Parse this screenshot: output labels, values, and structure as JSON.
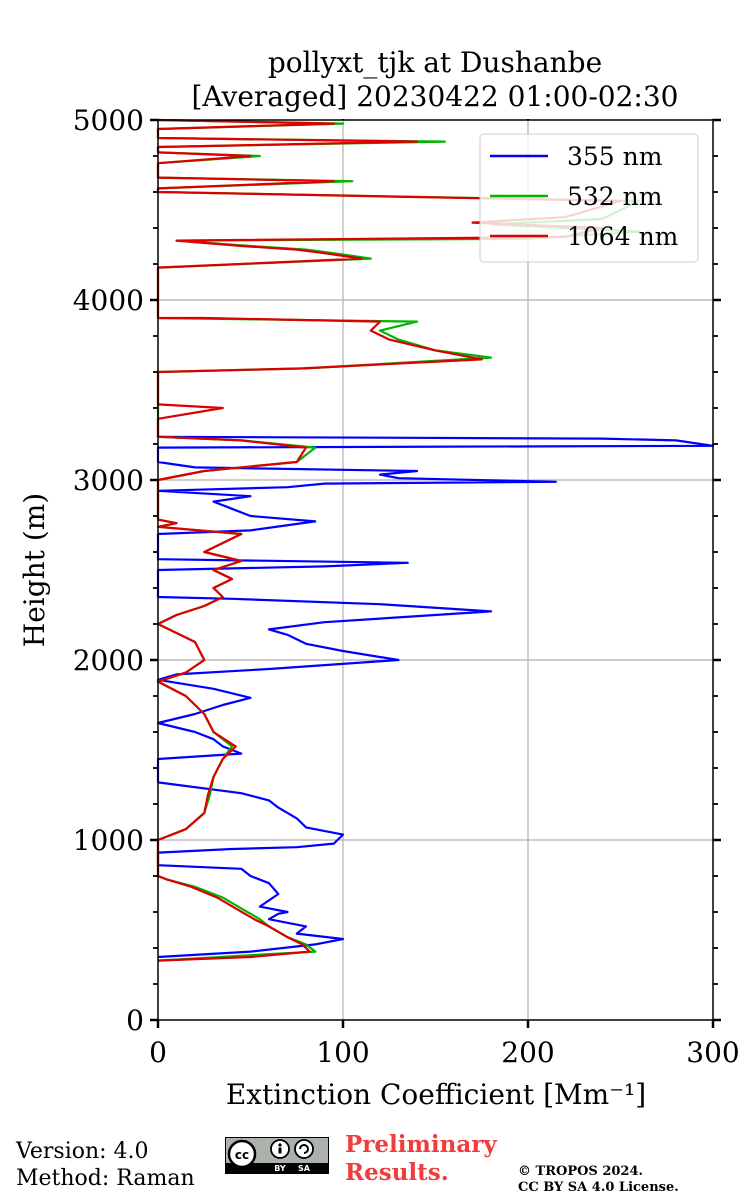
{
  "chart_data": {
    "type": "line",
    "title": "pollyxt_tjk at Dushanbe",
    "subtitle": "[Averaged] 20230422 01:00-02:30",
    "xlabel": "Extinction Coefficient [Mm⁻¹]",
    "ylabel": "Height (m)",
    "xlim": [
      0,
      300
    ],
    "ylim": [
      0,
      5000
    ],
    "xticks": [
      0,
      100,
      200,
      300
    ],
    "yticks": [
      0,
      1000,
      2000,
      3000,
      4000,
      5000
    ],
    "grid": true,
    "legend_position": "top-right",
    "series": [
      {
        "name": "355 nm",
        "color": "#0000ff",
        "points": [
          [
            0,
            350
          ],
          [
            50,
            380
          ],
          [
            85,
            420
          ],
          [
            100,
            450
          ],
          [
            75,
            480
          ],
          [
            80,
            520
          ],
          [
            60,
            560
          ],
          [
            65,
            590
          ],
          [
            70,
            600
          ],
          [
            55,
            630
          ],
          [
            65,
            700
          ],
          [
            60,
            760
          ],
          [
            50,
            800
          ],
          [
            45,
            840
          ],
          [
            0,
            860
          ],
          [
            0,
            930
          ],
          [
            40,
            950
          ],
          [
            75,
            960
          ],
          [
            95,
            980
          ],
          [
            100,
            1030
          ],
          [
            80,
            1070
          ],
          [
            75,
            1120
          ],
          [
            65,
            1180
          ],
          [
            60,
            1220
          ],
          [
            45,
            1260
          ],
          [
            0,
            1320
          ],
          [
            0,
            1450
          ],
          [
            45,
            1480
          ],
          [
            35,
            1520
          ],
          [
            30,
            1560
          ],
          [
            20,
            1600
          ],
          [
            0,
            1650
          ],
          [
            20,
            1700
          ],
          [
            35,
            1750
          ],
          [
            50,
            1790
          ],
          [
            30,
            1840
          ],
          [
            0,
            1890
          ],
          [
            10,
            1920
          ],
          [
            60,
            1950
          ],
          [
            130,
            2000
          ],
          [
            100,
            2050
          ],
          [
            80,
            2090
          ],
          [
            70,
            2140
          ],
          [
            60,
            2170
          ],
          [
            90,
            2210
          ],
          [
            180,
            2270
          ],
          [
            120,
            2310
          ],
          [
            40,
            2340
          ],
          [
            0,
            2350
          ],
          [
            0,
            2500
          ],
          [
            90,
            2520
          ],
          [
            135,
            2540
          ],
          [
            0,
            2560
          ],
          [
            0,
            2590
          ],
          [
            0,
            2700
          ],
          [
            50,
            2720
          ],
          [
            85,
            2770
          ],
          [
            50,
            2800
          ],
          [
            40,
            2840
          ],
          [
            30,
            2880
          ],
          [
            50,
            2910
          ],
          [
            0,
            2940
          ],
          [
            70,
            2960
          ],
          [
            90,
            2980
          ],
          [
            215,
            2990
          ],
          [
            130,
            3010
          ],
          [
            120,
            3030
          ],
          [
            140,
            3050
          ],
          [
            20,
            3070
          ],
          [
            0,
            3100
          ],
          [
            0,
            3180
          ],
          [
            300,
            3190
          ],
          [
            280,
            3220
          ],
          [
            240,
            3230
          ],
          [
            0,
            3240
          ]
        ]
      },
      {
        "name": "532 nm",
        "color": "#00b400",
        "points": [
          [
            0,
            330
          ],
          [
            50,
            360
          ],
          [
            85,
            380
          ],
          [
            80,
            420
          ],
          [
            70,
            460
          ],
          [
            60,
            520
          ],
          [
            55,
            560
          ],
          [
            45,
            620
          ],
          [
            35,
            680
          ],
          [
            20,
            740
          ],
          [
            5,
            780
          ],
          [
            0,
            800
          ],
          [
            0,
            1000
          ],
          [
            5,
            1020
          ],
          [
            15,
            1060
          ],
          [
            25,
            1150
          ],
          [
            28,
            1250
          ],
          [
            30,
            1350
          ],
          [
            35,
            1450
          ],
          [
            40,
            1520
          ],
          [
            30,
            1600
          ],
          [
            25,
            1700
          ],
          [
            15,
            1800
          ],
          [
            0,
            1880
          ],
          [
            15,
            1930
          ],
          [
            25,
            2000
          ],
          [
            20,
            2100
          ],
          [
            0,
            2200
          ],
          [
            10,
            2250
          ],
          [
            25,
            2300
          ],
          [
            35,
            2350
          ],
          [
            30,
            2400
          ],
          [
            40,
            2450
          ],
          [
            30,
            2500
          ],
          [
            45,
            2550
          ],
          [
            25,
            2600
          ],
          [
            35,
            2650
          ],
          [
            45,
            2700
          ],
          [
            0,
            2740
          ],
          [
            10,
            2760
          ],
          [
            0,
            2780
          ],
          [
            0,
            3000
          ],
          [
            25,
            3050
          ],
          [
            75,
            3100
          ],
          [
            85,
            3180
          ],
          [
            45,
            3220
          ],
          [
            0,
            3240
          ],
          [
            0,
            3600
          ],
          [
            80,
            3620
          ],
          [
            180,
            3680
          ],
          [
            150,
            3720
          ],
          [
            130,
            3780
          ],
          [
            120,
            3830
          ],
          [
            140,
            3880
          ],
          [
            0,
            3900
          ],
          [
            0,
            4180
          ],
          [
            115,
            4230
          ],
          [
            95,
            4260
          ],
          [
            80,
            4280
          ],
          [
            50,
            4300
          ],
          [
            10,
            4330
          ],
          [
            200,
            4340
          ],
          [
            260,
            4380
          ],
          [
            180,
            4420
          ],
          [
            240,
            4450
          ],
          [
            260,
            4550
          ],
          [
            0,
            4600
          ],
          [
            0,
            4620
          ],
          [
            105,
            4660
          ],
          [
            0,
            4680
          ],
          [
            0,
            4760
          ],
          [
            55,
            4800
          ],
          [
            0,
            4820
          ],
          [
            0,
            4850
          ],
          [
            155,
            4880
          ],
          [
            0,
            4900
          ],
          [
            0,
            4950
          ],
          [
            100,
            4980
          ],
          [
            0,
            5000
          ]
        ]
      },
      {
        "name": "1064 nm",
        "color": "#dc0000",
        "points": [
          [
            0,
            330
          ],
          [
            50,
            350
          ],
          [
            82,
            380
          ],
          [
            78,
            420
          ],
          [
            70,
            460
          ],
          [
            60,
            520
          ],
          [
            52,
            560
          ],
          [
            42,
            620
          ],
          [
            32,
            680
          ],
          [
            18,
            740
          ],
          [
            5,
            780
          ],
          [
            0,
            800
          ],
          [
            0,
            1000
          ],
          [
            5,
            1020
          ],
          [
            15,
            1060
          ],
          [
            25,
            1150
          ],
          [
            27,
            1250
          ],
          [
            30,
            1350
          ],
          [
            35,
            1450
          ],
          [
            42,
            1520
          ],
          [
            30,
            1600
          ],
          [
            25,
            1700
          ],
          [
            15,
            1800
          ],
          [
            0,
            1880
          ],
          [
            15,
            1930
          ],
          [
            25,
            2000
          ],
          [
            20,
            2100
          ],
          [
            0,
            2200
          ],
          [
            10,
            2250
          ],
          [
            25,
            2300
          ],
          [
            35,
            2350
          ],
          [
            30,
            2400
          ],
          [
            40,
            2450
          ],
          [
            30,
            2500
          ],
          [
            45,
            2550
          ],
          [
            25,
            2600
          ],
          [
            35,
            2650
          ],
          [
            45,
            2700
          ],
          [
            0,
            2740
          ],
          [
            10,
            2760
          ],
          [
            0,
            2780
          ],
          [
            0,
            3000
          ],
          [
            25,
            3050
          ],
          [
            75,
            3100
          ],
          [
            80,
            3180
          ],
          [
            45,
            3220
          ],
          [
            0,
            3240
          ],
          [
            0,
            3340
          ],
          [
            35,
            3400
          ],
          [
            0,
            3420
          ],
          [
            0,
            3480
          ],
          [
            0,
            3600
          ],
          [
            78,
            3620
          ],
          [
            175,
            3670
          ],
          [
            150,
            3720
          ],
          [
            125,
            3780
          ],
          [
            115,
            3830
          ],
          [
            120,
            3880
          ],
          [
            25,
            3900
          ],
          [
            0,
            3900
          ],
          [
            0,
            4180
          ],
          [
            110,
            4230
          ],
          [
            90,
            4260
          ],
          [
            75,
            4280
          ],
          [
            45,
            4300
          ],
          [
            10,
            4330
          ],
          [
            220,
            4350
          ],
          [
            240,
            4400
          ],
          [
            170,
            4430
          ],
          [
            220,
            4460
          ],
          [
            250,
            4550
          ],
          [
            0,
            4600
          ],
          [
            0,
            4620
          ],
          [
            95,
            4660
          ],
          [
            0,
            4680
          ],
          [
            0,
            4760
          ],
          [
            50,
            4800
          ],
          [
            0,
            4820
          ],
          [
            0,
            4850
          ],
          [
            140,
            4880
          ],
          [
            0,
            4900
          ],
          [
            0,
            4950
          ],
          [
            95,
            4980
          ],
          [
            0,
            5000
          ]
        ]
      }
    ]
  },
  "footer": {
    "version_line": "Version: 4.0",
    "method_line": "Method: Raman",
    "prelim_line1": "Preliminary",
    "prelim_line2": "Results.",
    "copyright_line1": "© TROPOS 2024.",
    "copyright_line2": "CC BY SA 4.0 License.",
    "license_badge": {
      "cc": "cc",
      "by": "BY",
      "sa": "SA"
    }
  }
}
